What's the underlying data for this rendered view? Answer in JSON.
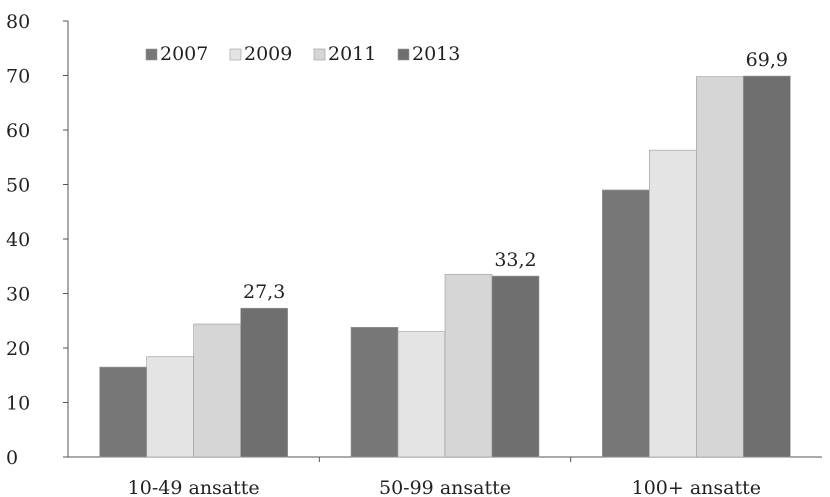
{
  "chart_data": {
    "type": "bar",
    "categories": [
      "10-49 ansatte",
      "50-99 ansatte",
      "100+ ansatte"
    ],
    "series": [
      {
        "name": "2007",
        "values": [
          16.5,
          23.8,
          49.0
        ],
        "color": "#777777"
      },
      {
        "name": "2009",
        "values": [
          18.4,
          23.0,
          56.3
        ],
        "color": "#e4e4e4"
      },
      {
        "name": "2011",
        "values": [
          24.4,
          33.5,
          69.8
        ],
        "color": "#d6d6d6"
      },
      {
        "name": "2013",
        "values": [
          27.3,
          33.2,
          69.9
        ],
        "color": "#6f6f6f"
      }
    ],
    "data_labels": [
      {
        "category_index": 0,
        "series_index": 3,
        "text": "27,3"
      },
      {
        "category_index": 1,
        "series_index": 3,
        "text": "33,2"
      },
      {
        "category_index": 2,
        "series_index": 3,
        "text": "69,9"
      }
    ],
    "y_ticks": [
      "0",
      "10",
      "20",
      "30",
      "40",
      "50",
      "60",
      "70",
      "80"
    ],
    "ylim": [
      0,
      80
    ],
    "grid": false,
    "legend_position": "top-left"
  }
}
